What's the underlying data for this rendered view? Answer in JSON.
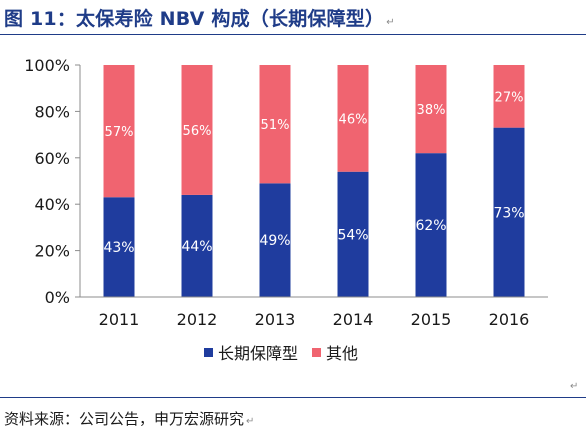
{
  "figure": {
    "title": "图 11：太保寿险 NBV 构成（长期保障型）",
    "paragraph_mark": "↵",
    "source": "资料来源：公司公告，申万宏源研究"
  },
  "chart_data": {
    "type": "bar",
    "stacked": true,
    "categories": [
      "2011",
      "2012",
      "2013",
      "2014",
      "2015",
      "2016"
    ],
    "series": [
      {
        "name": "长期保障型",
        "values": [
          43,
          44,
          49,
          54,
          62,
          73
        ],
        "labels": [
          "43%",
          "44%",
          "49%",
          "54%",
          "62%",
          "73%"
        ],
        "color": "#1f3c9e"
      },
      {
        "name": "其他",
        "values": [
          57,
          56,
          51,
          46,
          38,
          27
        ],
        "labels": [
          "57%",
          "56%",
          "51%",
          "46%",
          "38%",
          "27%"
        ],
        "color": "#f06470"
      }
    ],
    "ylim": [
      0,
      100
    ],
    "yticks": [
      "0%",
      "20%",
      "40%",
      "60%",
      "80%",
      "100%"
    ],
    "grid": false,
    "legend": "bottom",
    "xlabel": "",
    "ylabel": ""
  }
}
